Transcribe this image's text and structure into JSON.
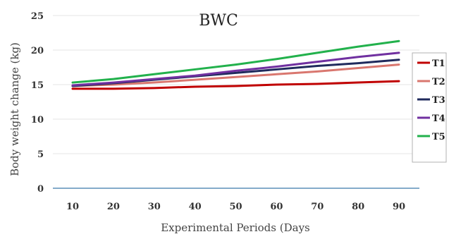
{
  "chart_data": {
    "type": "line",
    "title": "BWC",
    "xlabel": "Experimental  Periods (Days",
    "ylabel": "Body weight change (kg)",
    "x": [
      10,
      20,
      30,
      40,
      50,
      60,
      70,
      80,
      90
    ],
    "xlim": [
      10,
      90
    ],
    "ylim": [
      0,
      25
    ],
    "yticks": [
      "0",
      "5",
      "10",
      "15",
      "20",
      "25"
    ],
    "xticks": [
      "10",
      "20",
      "30",
      "40",
      "50",
      "60",
      "70",
      "80",
      "90"
    ],
    "grid": true,
    "legend": "right",
    "series": [
      {
        "name": "T1",
        "color": "#c00000",
        "values": [
          14.4,
          14.4,
          14.5,
          14.7,
          14.8,
          15.0,
          15.1,
          15.3,
          15.5
        ]
      },
      {
        "name": "T2",
        "color": "#d9776f",
        "values": [
          14.8,
          15.0,
          15.3,
          15.7,
          16.1,
          16.5,
          16.9,
          17.4,
          17.9
        ]
      },
      {
        "name": "T3",
        "color": "#1f2a5c",
        "values": [
          14.8,
          15.2,
          15.7,
          16.2,
          16.7,
          17.2,
          17.7,
          18.1,
          18.6
        ]
      },
      {
        "name": "T4",
        "color": "#7030a0",
        "values": [
          14.9,
          15.3,
          15.8,
          16.3,
          17.0,
          17.6,
          18.3,
          19.0,
          19.6
        ]
      },
      {
        "name": "T5",
        "color": "#22b14c",
        "values": [
          15.3,
          15.8,
          16.5,
          17.2,
          17.9,
          18.7,
          19.6,
          20.5,
          21.3
        ]
      }
    ]
  }
}
